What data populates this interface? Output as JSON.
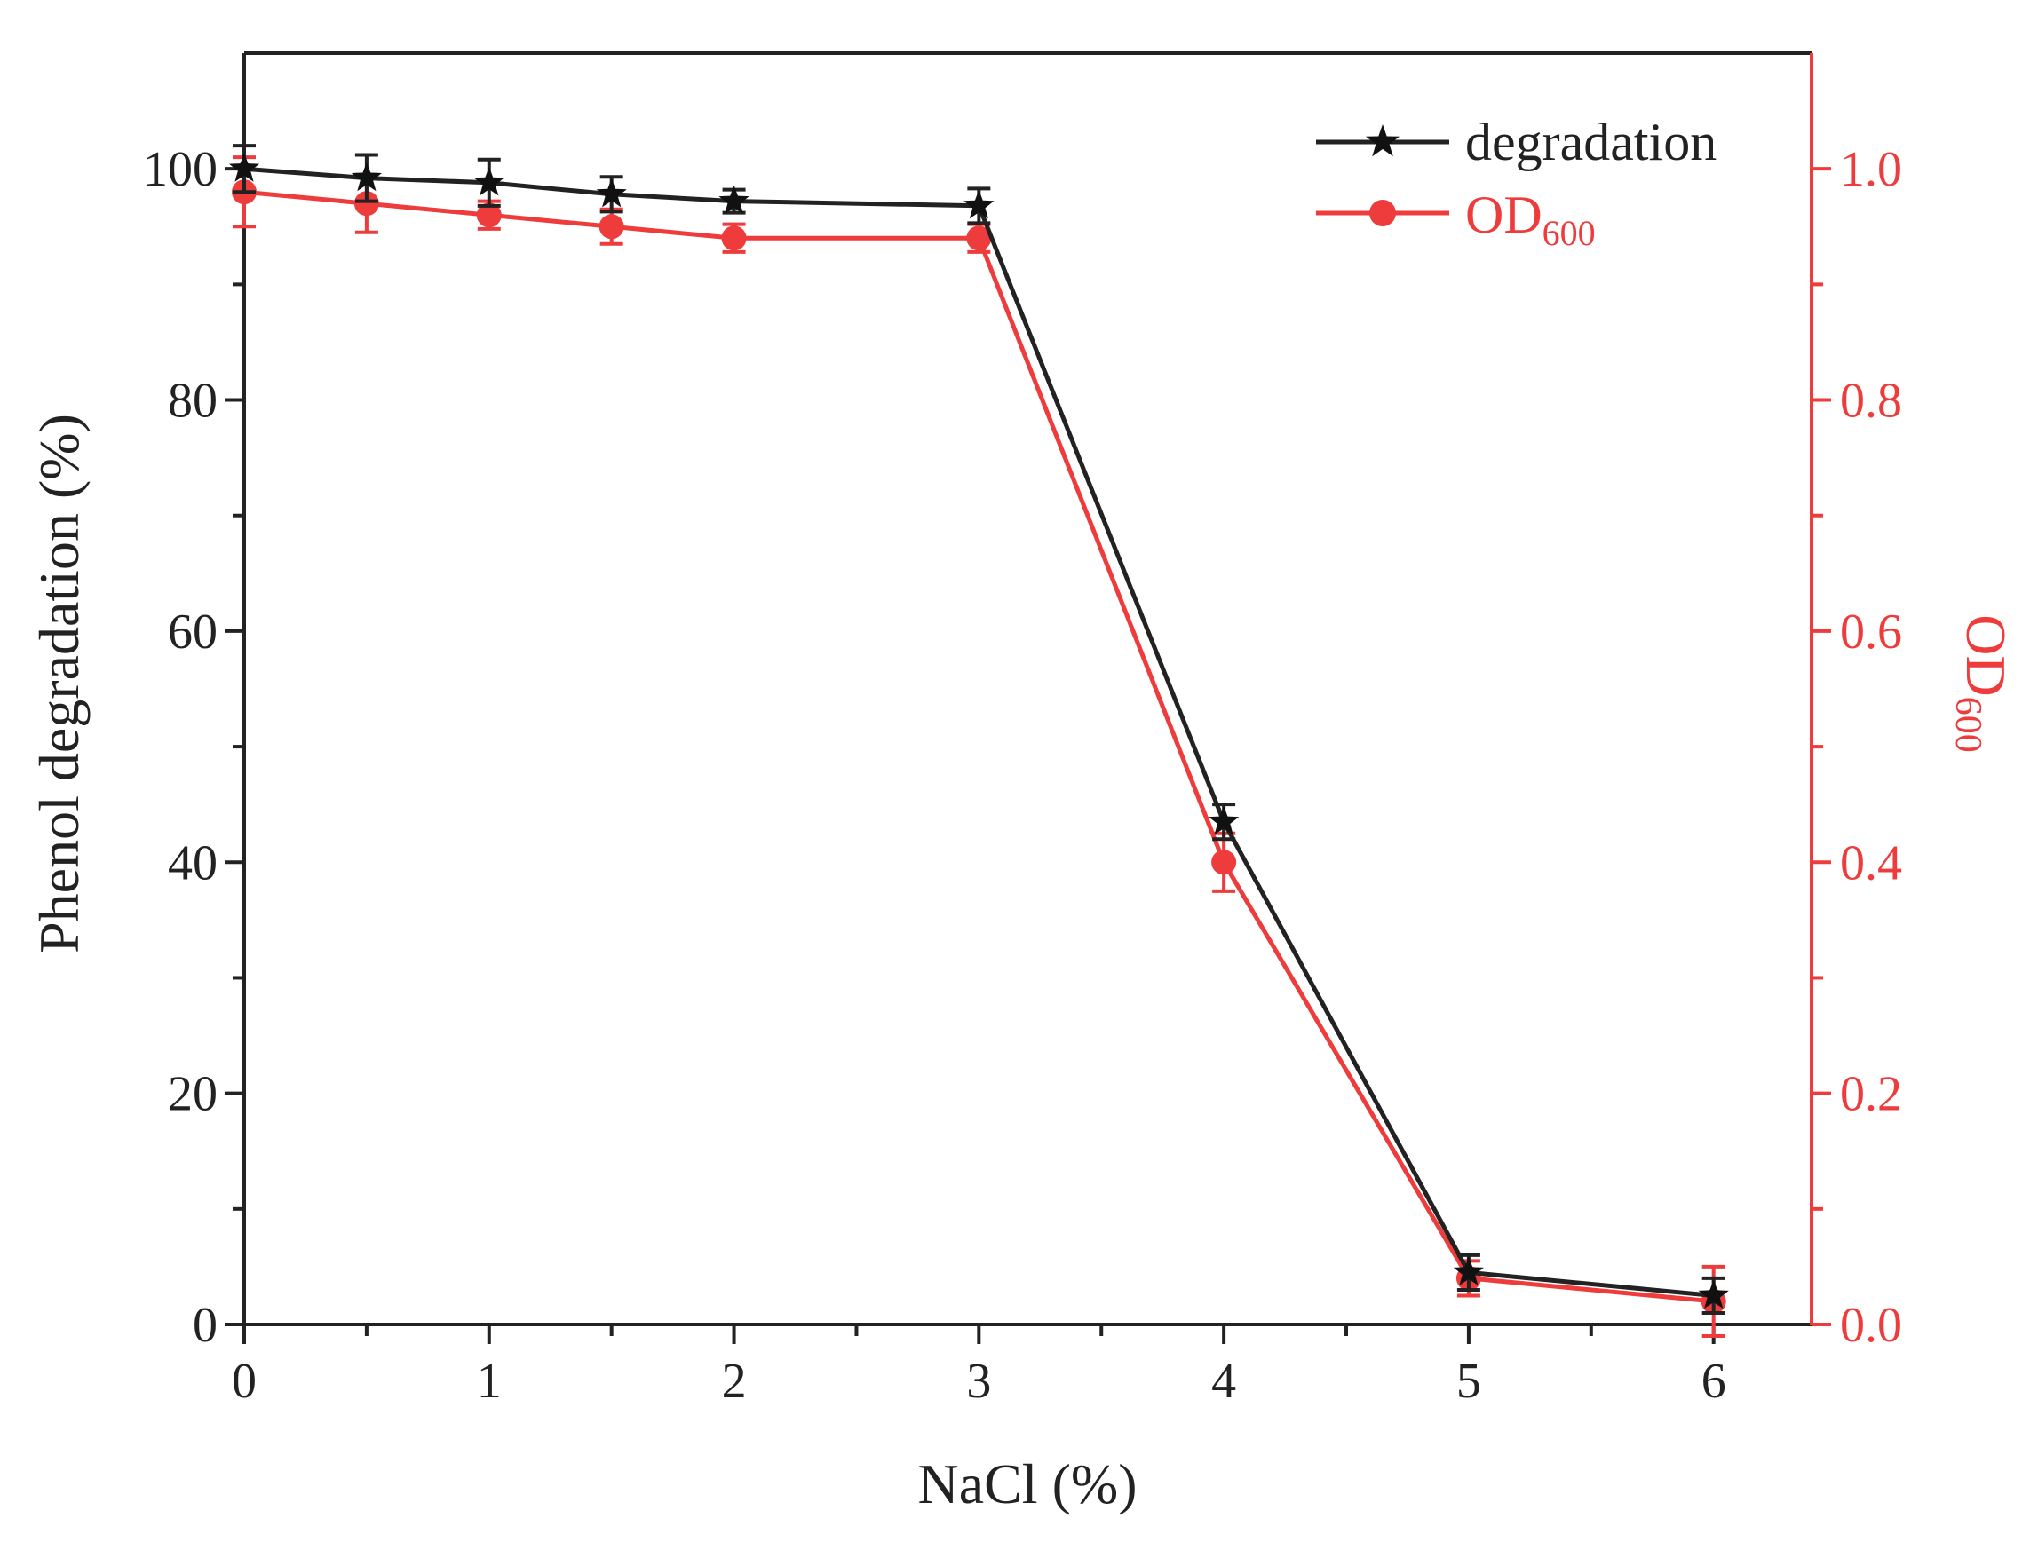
{
  "chart_data": {
    "type": "line",
    "title": "",
    "xlabel": "NaCl (%)",
    "ylabel_left": "Phenol degradation (%)",
    "ylabel_right_main": "OD",
    "ylabel_right_sub": "600",
    "xlim": [
      0,
      6.4
    ],
    "xticks": [
      0,
      1,
      2,
      3,
      4,
      5,
      6
    ],
    "xtick_labels": [
      "0",
      "1",
      "2",
      "3",
      "4",
      "5",
      "6"
    ],
    "ylim_left": [
      0,
      110
    ],
    "yticks_left": [
      0,
      20,
      40,
      60,
      80,
      100
    ],
    "ytick_labels_left": [
      "0",
      "20",
      "40",
      "60",
      "80",
      "100"
    ],
    "ylim_right": [
      0,
      1.1
    ],
    "yticks_right": [
      0,
      0.2,
      0.4,
      0.6,
      0.8,
      1.0
    ],
    "ytick_labels_right": [
      "0.0",
      "0.2",
      "0.4",
      "0.6",
      "0.8",
      "1.0"
    ],
    "grid": false,
    "legend_position": "top-right",
    "series": [
      {
        "name": "degradation",
        "axis": "left",
        "color": "#222222",
        "marker": "star",
        "x": [
          0,
          0.5,
          1,
          1.5,
          2,
          3,
          4,
          5,
          6
        ],
        "values": [
          100,
          99.2,
          98.8,
          97.8,
          97.2,
          96.8,
          43.5,
          4.5,
          2.5
        ],
        "errors": [
          2,
          2,
          2,
          1.5,
          1,
          1.5,
          1.5,
          1.5,
          1.5
        ]
      },
      {
        "name_main": "OD",
        "name_sub": "600",
        "axis": "right",
        "color": "#ee3b3b",
        "marker": "circle",
        "x": [
          0,
          0.5,
          1,
          1.5,
          2,
          3,
          4,
          5,
          6
        ],
        "values": [
          0.98,
          0.97,
          0.96,
          0.95,
          0.94,
          0.94,
          0.4,
          0.04,
          0.02
        ],
        "errors": [
          0.03,
          0.025,
          0.012,
          0.015,
          0.012,
          0.012,
          0.025,
          0.015,
          0.03
        ]
      }
    ]
  }
}
